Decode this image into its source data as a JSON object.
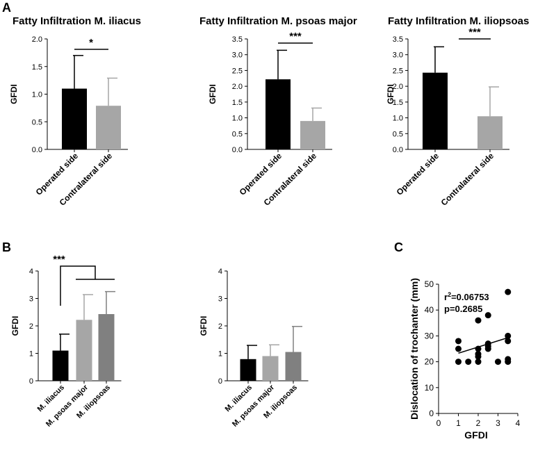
{
  "panel_labels": {
    "a": "A",
    "b": "B",
    "c": "C"
  },
  "colors": {
    "operated": "#000000",
    "contralateral": "#a6a6a6",
    "iliacus": "#000000",
    "psoas": "#a6a6a6",
    "iliopsoas": "#808080",
    "point": "#000000"
  },
  "chart_data": [
    {
      "id": "a1",
      "type": "bar",
      "title": "Fatty Infiltration M. iliacus",
      "ylabel": "GFDI",
      "xlabel": "",
      "ylim": [
        0,
        2.0
      ],
      "yticks": [
        "0.0",
        "0.5",
        "1.0",
        "1.5",
        "2.0"
      ],
      "categories": [
        "Operated side",
        "Contralateral side"
      ],
      "values": [
        1.1,
        0.79
      ],
      "errors": [
        0.6,
        0.5
      ],
      "significance": "*"
    },
    {
      "id": "a2",
      "type": "bar",
      "title": "Fatty Infiltration M. psoas major",
      "ylabel": "GFDI",
      "xlabel": "",
      "ylim": [
        0,
        3.5
      ],
      "yticks": [
        "0.0",
        "0.5",
        "1.0",
        "1.5",
        "2.0",
        "2.5",
        "3.0",
        "3.5"
      ],
      "categories": [
        "Operated side",
        "Contralateral side"
      ],
      "values": [
        2.22,
        0.9
      ],
      "errors": [
        0.92,
        0.41
      ],
      "significance": "***"
    },
    {
      "id": "a3",
      "type": "bar",
      "title": "Fatty Infiltration M. iliopsoas",
      "ylabel": "GFDI",
      "xlabel": "",
      "ylim": [
        0,
        3.5
      ],
      "yticks": [
        "0.0",
        "0.5",
        "1.0",
        "1.5",
        "2.0",
        "2.5",
        "3.0",
        "3.5"
      ],
      "categories": [
        "Operated side",
        "Contralateral side"
      ],
      "values": [
        2.43,
        1.05
      ],
      "errors": [
        0.82,
        0.93
      ],
      "significance": "***"
    },
    {
      "id": "b1",
      "type": "bar",
      "title": "",
      "ylabel": "GFDI",
      "xlabel": "",
      "ylim": [
        0,
        4
      ],
      "yticks": [
        "0",
        "1",
        "2",
        "3",
        "4"
      ],
      "categories": [
        "M. iliacus",
        "M. psoas major",
        "M. iliopsoas"
      ],
      "values": [
        1.1,
        2.22,
        2.43
      ],
      "errors": [
        0.6,
        0.92,
        0.82
      ],
      "significance": "***"
    },
    {
      "id": "b2",
      "type": "bar",
      "title": "",
      "ylabel": "GFDI",
      "xlabel": "",
      "ylim": [
        0,
        4
      ],
      "yticks": [
        "0",
        "1",
        "2",
        "3",
        "4"
      ],
      "categories": [
        "M. iliacus",
        "M. psoas major",
        "M. iliopsoas"
      ],
      "values": [
        0.79,
        0.9,
        1.05
      ],
      "errors": [
        0.5,
        0.41,
        0.93
      ],
      "significance": ""
    },
    {
      "id": "c",
      "type": "scatter",
      "title": "",
      "xlabel": "GFDI",
      "ylabel": "Dislocation of trochanter (mm)",
      "xlim": [
        0,
        4
      ],
      "ylim": [
        0,
        50
      ],
      "xticks": [
        "0",
        "1",
        "2",
        "3",
        "4"
      ],
      "yticks": [
        "0",
        "10",
        "20",
        "30",
        "40",
        "50"
      ],
      "points": [
        {
          "x": 1,
          "y": 20
        },
        {
          "x": 1,
          "y": 25
        },
        {
          "x": 1,
          "y": 28
        },
        {
          "x": 1.5,
          "y": 20
        },
        {
          "x": 2,
          "y": 20
        },
        {
          "x": 2,
          "y": 22
        },
        {
          "x": 2,
          "y": 23
        },
        {
          "x": 2,
          "y": 25
        },
        {
          "x": 2,
          "y": 36
        },
        {
          "x": 2.5,
          "y": 25
        },
        {
          "x": 2.5,
          "y": 26
        },
        {
          "x": 2.5,
          "y": 27
        },
        {
          "x": 2.5,
          "y": 38
        },
        {
          "x": 3,
          "y": 20
        },
        {
          "x": 3.5,
          "y": 20
        },
        {
          "x": 3.5,
          "y": 21
        },
        {
          "x": 3.5,
          "y": 28
        },
        {
          "x": 3.5,
          "y": 30
        },
        {
          "x": 3.5,
          "y": 47
        }
      ],
      "fit": {
        "x": [
          1,
          3.5
        ],
        "y": [
          23.3,
          29.3
        ]
      },
      "r2_prefix": "r",
      "r2_sup": "2",
      "r2_value": "=0.06753",
      "p_text": "p=0.2685"
    }
  ]
}
